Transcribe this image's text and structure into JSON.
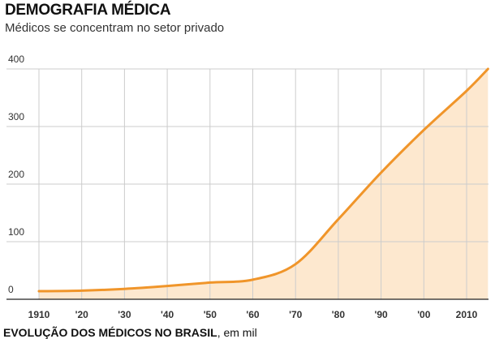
{
  "title": "DEMOGRAFIA MÉDICA",
  "subtitle": "Médicos se concentram no setor privado",
  "footer": {
    "bold": "EVOLUÇÃO DOS MÉDICOS NO BRASIL",
    "rest": ", em mil"
  },
  "chart_data": {
    "type": "area",
    "x": [
      1910,
      1920,
      1930,
      1940,
      1950,
      1960,
      1970,
      1980,
      1990,
      2000,
      2010,
      2015
    ],
    "values": [
      14,
      15,
      18,
      23,
      29,
      34,
      61,
      139,
      220,
      294,
      362,
      400
    ],
    "x_ticks": [
      1910,
      1920,
      1930,
      1940,
      1950,
      1960,
      1970,
      1980,
      1990,
      2000,
      2010
    ],
    "x_tick_labels": [
      "1910",
      "'20",
      "'30",
      "'40",
      "'50",
      "'60",
      "'70",
      "'80",
      "'90",
      "'00",
      "2010"
    ],
    "y_ticks": [
      0,
      100,
      200,
      300,
      400
    ],
    "y_tick_labels": [
      "0",
      "100",
      "200",
      "300",
      "400"
    ],
    "ylim": [
      0,
      400
    ],
    "xlim": [
      1902,
      2015
    ],
    "grid": true,
    "colors": {
      "line": "#f0952a",
      "fill": "#fde8cf",
      "grid": "#cccccc"
    }
  }
}
